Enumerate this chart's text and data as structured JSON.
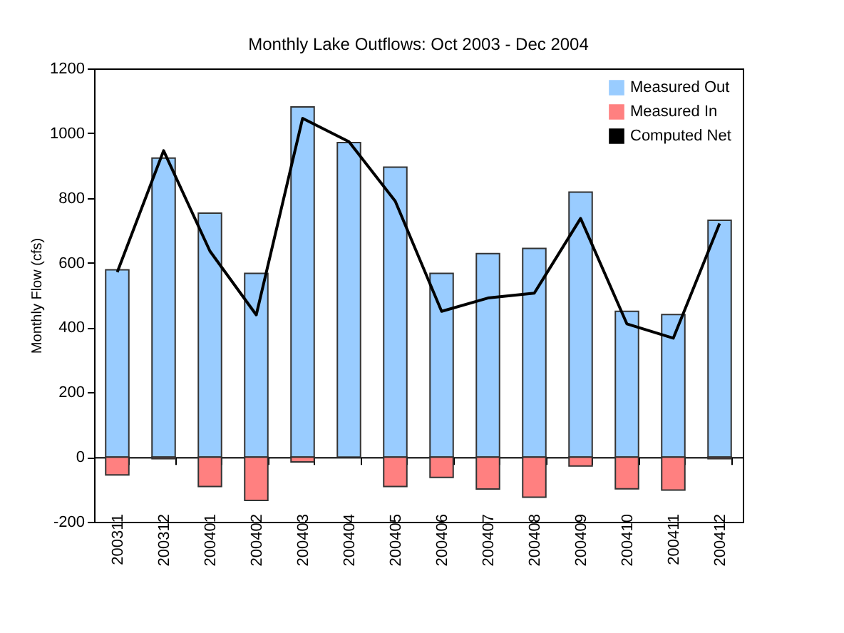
{
  "chart_data": {
    "type": "bar",
    "title": "Monthly Lake Outflows:  Oct 2003 - Dec 2004",
    "ylabel": "Monthly Flow (cfs)",
    "categories": [
      "200311",
      "200312",
      "200401",
      "200402",
      "200403",
      "200404",
      "200405",
      "200406",
      "200407",
      "200408",
      "200409",
      "200410",
      "200411",
      "200412"
    ],
    "series": [
      {
        "name": "Measured Out",
        "color": "#99ccff",
        "values": [
          578,
          923,
          753,
          567,
          1081,
          971,
          895,
          567,
          628,
          644,
          818,
          450,
          440,
          731
        ]
      },
      {
        "name": "Measured In",
        "color": "#ff8080",
        "values": [
          -55,
          -5,
          -91,
          -134,
          -15,
          null,
          -91,
          -63,
          -99,
          -124,
          -28,
          -98,
          -102,
          -5
        ]
      },
      {
        "name": "Computed Net",
        "type": "line",
        "color": "#000000",
        "values": [
          571,
          946,
          636,
          439,
          1046,
          974,
          790,
          450,
          491,
          506,
          737,
          411,
          367,
          721
        ]
      }
    ],
    "stacked": true,
    "ylim": [
      -200,
      1200
    ],
    "yticks": [
      -200,
      0,
      200,
      400,
      600,
      800,
      1000,
      1200
    ],
    "legend": "top right"
  }
}
